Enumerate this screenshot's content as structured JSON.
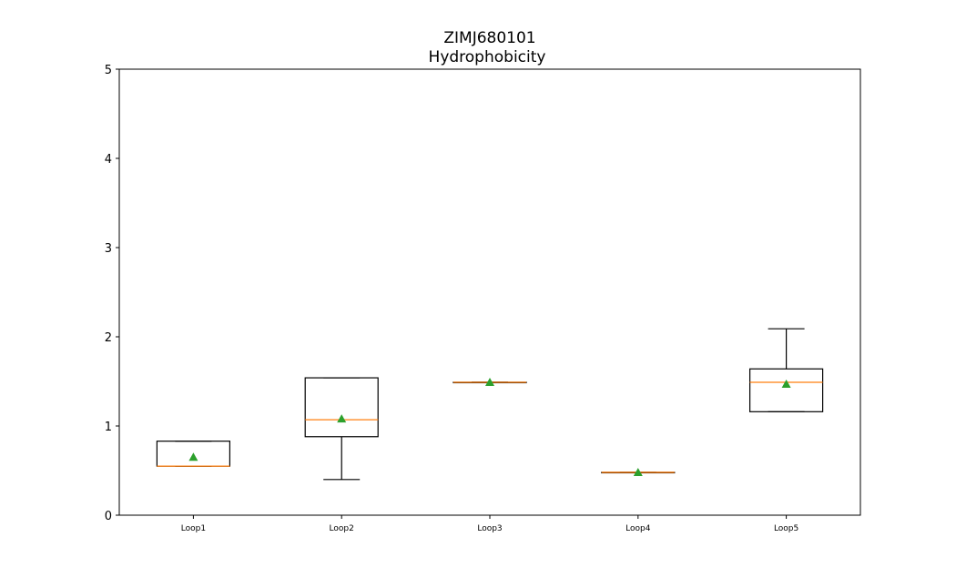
{
  "chart_data": {
    "type": "box",
    "title_line1": "ZIMJ680101",
    "title_line2": "Hydrophobicity",
    "xlabel": "",
    "ylabel": "",
    "ylim": [
      0,
      5
    ],
    "yticks": [
      0,
      1,
      2,
      3,
      4,
      5
    ],
    "grid": false,
    "categories": [
      "Loop1",
      "Loop2",
      "Loop3",
      "Loop4",
      "Loop5"
    ],
    "boxes": [
      {
        "label": "Loop1",
        "whisker_low": 0.55,
        "q1": 0.55,
        "median": 0.55,
        "q3": 0.83,
        "whisker_high": 0.83,
        "mean": 0.65
      },
      {
        "label": "Loop2",
        "whisker_low": 0.4,
        "q1": 0.88,
        "median": 1.07,
        "q3": 1.54,
        "whisker_high": 1.54,
        "mean": 1.08
      },
      {
        "label": "Loop3",
        "whisker_low": 1.49,
        "q1": 1.49,
        "median": 1.49,
        "q3": 1.49,
        "whisker_high": 1.49,
        "mean": 1.49
      },
      {
        "label": "Loop4",
        "whisker_low": 0.48,
        "q1": 0.48,
        "median": 0.48,
        "q3": 0.48,
        "whisker_high": 0.48,
        "mean": 0.48
      },
      {
        "label": "Loop5",
        "whisker_low": 1.16,
        "q1": 1.16,
        "median": 1.49,
        "q3": 1.64,
        "whisker_high": 2.09,
        "mean": 1.47
      }
    ],
    "colors": {
      "box": "#000000",
      "median": "#ff7f0e",
      "mean": "#2ca02c"
    }
  }
}
